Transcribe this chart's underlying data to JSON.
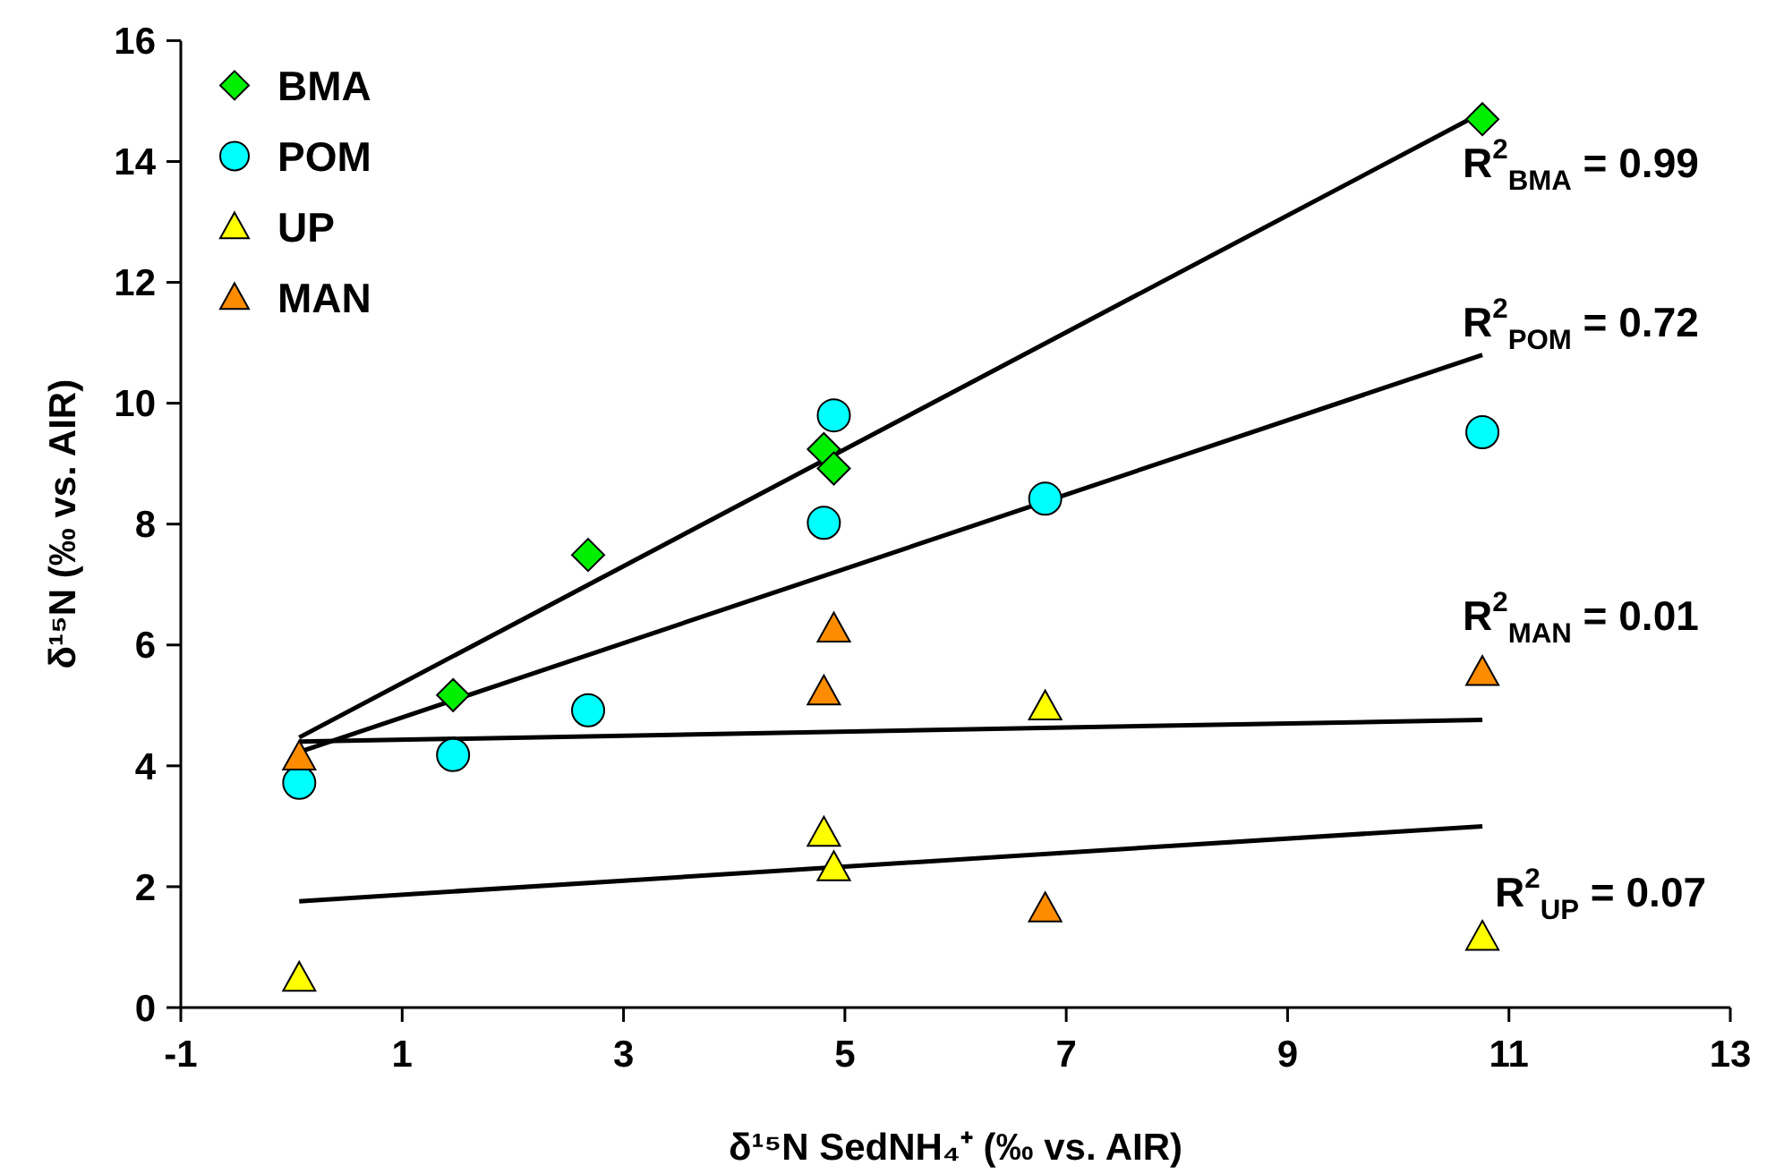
{
  "chart_data": {
    "type": "scatter",
    "xlabel": "δ¹⁵N SedNH₄⁺ (‰ vs. AIR)",
    "ylabel": "δ¹⁵N (‰ vs. AIR)",
    "xlim": [
      -1,
      13
    ],
    "xticks": [
      -1,
      1,
      3,
      5,
      7,
      9,
      11,
      13
    ],
    "ylim": [
      0,
      16
    ],
    "yticks": [
      0,
      2,
      4,
      6,
      8,
      10,
      12,
      14,
      16
    ],
    "grid": false,
    "legend": "top left",
    "series": [
      {
        "name": "BMA",
        "color": "#00ee00",
        "marker": "diamond",
        "x": [
          1.46,
          2.68,
          4.81,
          4.9,
          10.76
        ],
        "values": [
          5.17,
          7.49,
          9.24,
          8.92,
          14.7
        ]
      },
      {
        "name": "POM",
        "color": "#00ffff",
        "marker": "circle",
        "x": [
          0.07,
          1.46,
          2.68,
          4.81,
          4.9,
          6.81,
          10.76
        ],
        "values": [
          3.72,
          4.18,
          4.92,
          8.02,
          9.8,
          8.42,
          9.52
        ]
      },
      {
        "name": "UP",
        "color": "#ffff00",
        "marker": "triangle",
        "x": [
          0.07,
          4.81,
          4.9,
          6.81,
          10.76
        ],
        "values": [
          0.49,
          2.89,
          2.32,
          4.98,
          1.17
        ]
      },
      {
        "name": "MAN",
        "color": "#ff8c00",
        "marker": "triangle",
        "x": [
          0.07,
          4.81,
          4.9,
          6.81,
          10.76
        ],
        "values": [
          4.15,
          5.23,
          6.27,
          1.64,
          5.55
        ]
      },
      {
        "type": "line",
        "color": "#000000",
        "marker": "none",
        "x": [
          0.07,
          10.76
        ],
        "values": [
          4.47,
          14.81
        ]
      },
      {
        "type": "line",
        "color": "#000000",
        "marker": "none",
        "x": [
          0.07,
          10.76
        ],
        "values": [
          4.23,
          10.8
        ]
      },
      {
        "type": "line",
        "color": "#000000",
        "marker": "none",
        "x": [
          0.07,
          10.76
        ],
        "values": [
          4.4,
          4.76
        ]
      },
      {
        "type": "line",
        "color": "#000000",
        "marker": "none",
        "x": [
          0.07,
          10.76
        ],
        "values": [
          1.76,
          3.0
        ]
      }
    ],
    "annotations": [
      "R$^{2}$$_{BMA}$ = 0.99",
      "R$^{2}$$_{POM}$ = 0.72",
      "R$^{2}$$_{MAN}$ = 0.01",
      "R$^{2}$$_{UP}$ = 0.07"
    ]
  }
}
